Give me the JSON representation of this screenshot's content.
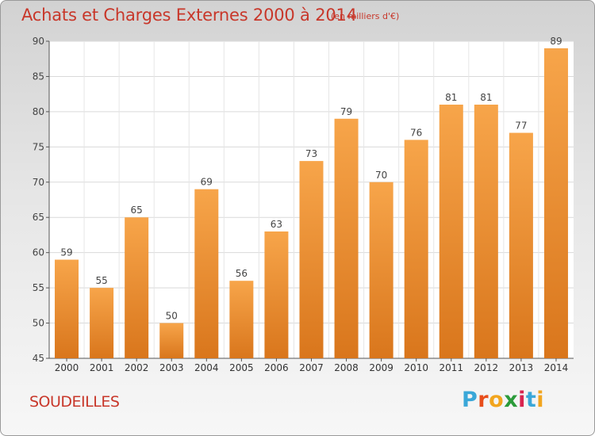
{
  "header": {
    "title": "Achats et Charges Externes 2000 à 2014",
    "subtitle": "(en milliers d'€)"
  },
  "footer": {
    "commune": "SOUDEILLES",
    "logo_letters": [
      "P",
      "r",
      "o",
      "x",
      "i",
      "t",
      "i"
    ],
    "logo_colors": [
      "#3aa7d8",
      "#e84e1b",
      "#f2a51e",
      "#2b9b3a",
      "#d8244f",
      "#3aa7d8",
      "#f2a51e"
    ]
  },
  "colors": {
    "bar_light": "#f7a54a",
    "bar_dark": "#d9761c",
    "title": "#c8372a"
  },
  "chart_data": {
    "type": "bar",
    "title": "Achats et Charges Externes 2000 à 2014",
    "subtitle": "(en milliers d'€)",
    "categories": [
      "2000",
      "2001",
      "2002",
      "2003",
      "2004",
      "2005",
      "2006",
      "2007",
      "2008",
      "2009",
      "2010",
      "2011",
      "2012",
      "2013",
      "2014"
    ],
    "values": [
      59,
      55,
      65,
      50,
      69,
      56,
      63,
      73,
      79,
      70,
      76,
      81,
      81,
      77,
      89
    ],
    "ylim": [
      45,
      90
    ],
    "yticks": [
      45,
      50,
      55,
      60,
      65,
      70,
      75,
      80,
      85,
      90
    ],
    "grid": true,
    "data_labels": true
  }
}
